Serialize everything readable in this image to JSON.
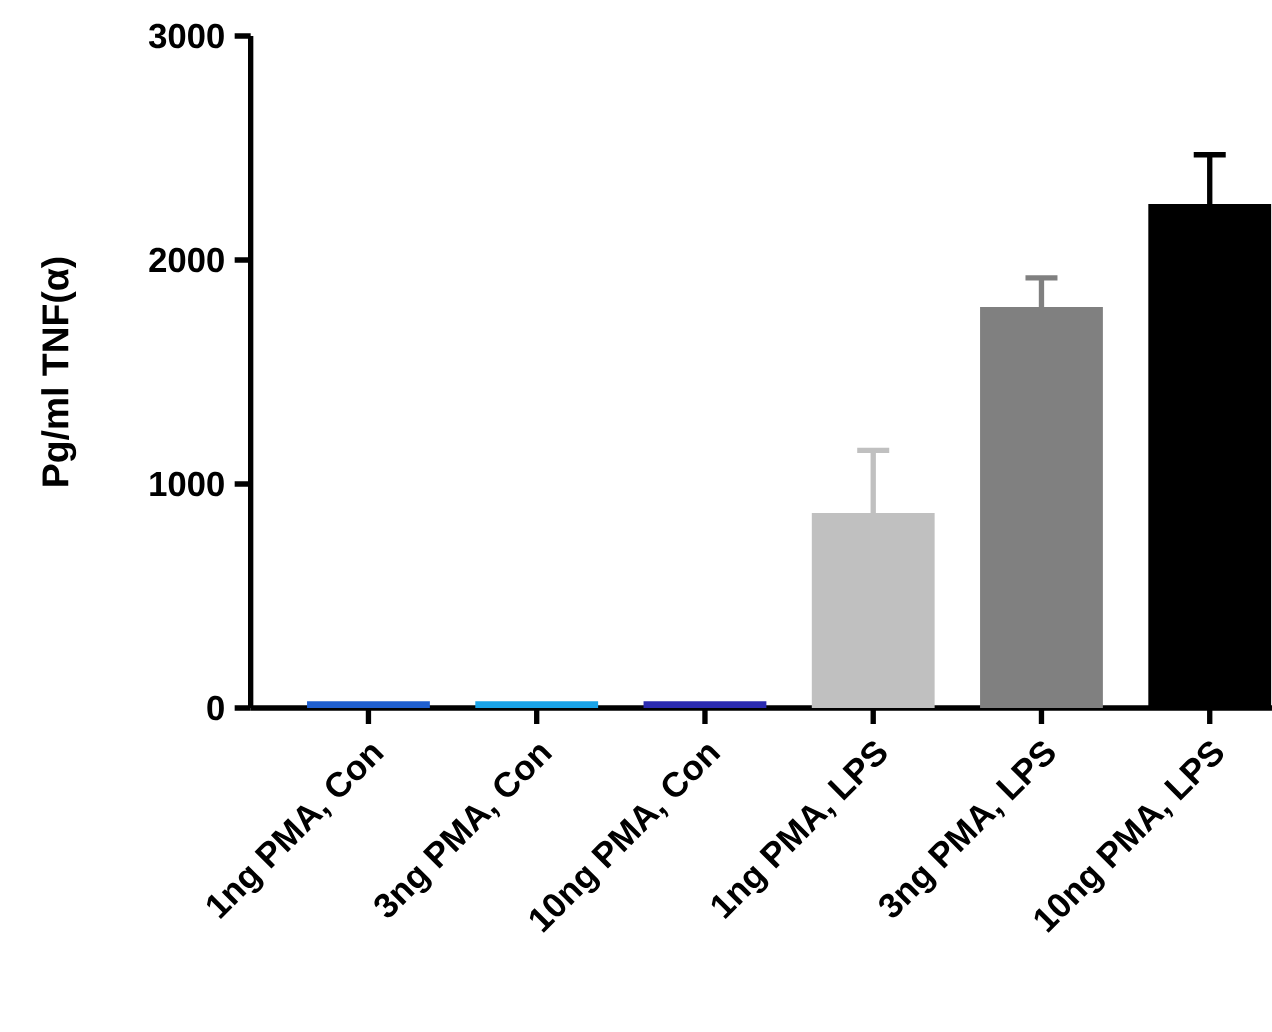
{
  "chart_data": {
    "type": "bar",
    "ylabel": "Pg/ml TNF(α)",
    "categories": [
      "1ng PMA, Con",
      "3ng PMA, Con",
      "10ng PMA, Con",
      "1ng PMA, LPS",
      "3ng PMA, LPS",
      "10ng PMA, LPS"
    ],
    "values": [
      30,
      30,
      30,
      870,
      1790,
      2250
    ],
    "errors": [
      null,
      null,
      null,
      280,
      130,
      220
    ],
    "colors": [
      "#1f5fd0",
      "#1aa3e8",
      "#2b2bb0",
      "#c0c0c0",
      "#808080",
      "#000000"
    ],
    "ylim": [
      0,
      3000
    ],
    "yticks": [
      0,
      1000,
      2000,
      3000
    ]
  }
}
